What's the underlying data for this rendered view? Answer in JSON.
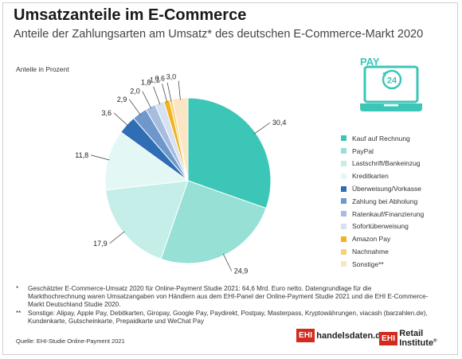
{
  "title": "Umsatzanteile im E-Commerce",
  "subtitle": "Anteile der Zahlungsarten am Umsatz* des deutschen E-Commerce-Markt 2020",
  "colors": {
    "teal": "#3cc6b7",
    "amazon": "#f2b21c"
  },
  "icon": {
    "name": "pay24-laptop-icon",
    "text_pay": "PAY",
    "text_24": "24"
  },
  "chart_data": {
    "type": "pie",
    "ylabel": "Anteile in Prozent",
    "legend_position": "right",
    "slices": [
      {
        "label": "Kauf auf Rechnung",
        "value": 30.4,
        "display": "30,4",
        "color": "#3cc6b7"
      },
      {
        "label": "PayPal",
        "value": 24.9,
        "display": "24,9",
        "color": "#96e0d5"
      },
      {
        "label": "Lastschrift/Bankeinzug",
        "value": 17.9,
        "display": "17,9",
        "color": "#c5eee8"
      },
      {
        "label": "Kreditkarten",
        "value": 11.8,
        "display": "11,8",
        "color": "#e3f7f4"
      },
      {
        "label": "Überweisung/Vorkasse",
        "value": 3.6,
        "display": "3,6",
        "color": "#2f6eb5"
      },
      {
        "label": "Zahlung bei Abholung",
        "value": 2.9,
        "display": "2,9",
        "color": "#6e98cc"
      },
      {
        "label": "Ratenkauf/Finanzierung",
        "value": 2.0,
        "display": "2,0",
        "color": "#a6bde0"
      },
      {
        "label": "Sofortüberweisung",
        "value": 1.8,
        "display": "1,8",
        "color": "#d6e1f1"
      },
      {
        "label": "Amazon Pay",
        "value": 1.1,
        "display": "1,1",
        "color": "#f2b21c"
      },
      {
        "label": "Nachnahme",
        "value": 0.6,
        "display": "0,6",
        "color": "#f6d27a"
      },
      {
        "label": "Sonstige**",
        "value": 3.0,
        "display": "3,0",
        "color": "#fbe6c4"
      }
    ]
  },
  "footnotes": {
    "fn1_mark": "*",
    "fn1": "Geschätzter E-Commerce-Umsatz 2020 für Online-Payment Studie 2021: 64,6 Mrd. Euro netto. Datengrundlage für die Markthochrechnung waren Umsatzangaben von Händlern aus dem EHI-Panel der Online-Payment Studie 2021 und die EHI E-Commerce-Markt Deutschland Studie 2020.",
    "fn2_mark": "**",
    "fn2": "Sonstige: Alipay, Apple Pay, Debitkarten, Giropay, Google Pay, Paydirekt, Postpay, Masterpass, Kryptowährungen, viacash (barzahlen.de), Kundenkarte, Gutscheinkarte, Prepaidkarte und WeChat Pay"
  },
  "source": "Quelle: EHI-Studie Online-Payment 2021",
  "logos": {
    "ehi_box": "EHI",
    "handelsdaten": "handelsdaten.de",
    "retail": "Retail Institute",
    "reg": "®"
  }
}
